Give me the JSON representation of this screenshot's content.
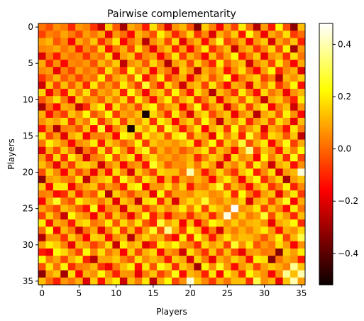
{
  "chart_data": {
    "type": "heatmap",
    "title": "Pairwise complementarity",
    "xlabel": "Players",
    "ylabel": "Players",
    "n": 36,
    "x_ticks": [
      0,
      5,
      10,
      15,
      20,
      25,
      30,
      35
    ],
    "y_ticks": [
      0,
      5,
      10,
      15,
      20,
      25,
      30,
      35
    ],
    "colormap": "hot",
    "vmin": -0.52,
    "vmax": 0.48,
    "colorbar_ticks": [
      -0.4,
      -0.2,
      0.0,
      0.2,
      0.4
    ],
    "colorbar_tick_labels": [
      "−0.4",
      "−0.2",
      "0.0",
      "0.2",
      "0.4"
    ],
    "values": [
      [
        0.02,
        -0.04,
        0.06,
        0.03,
        -0.1,
        0.07,
        0.04,
        -0.08,
        -0.25,
        0.16,
        -0.02,
        -0.3,
        0.1,
        0.05,
        -0.12,
        0.18,
        0.02,
        -0.22,
        0.07,
        0.12,
        -0.03,
        -0.34,
        0.15,
        0.04,
        -0.18,
        0.09,
        -0.06,
        0.2,
        0.01,
        -0.28,
        0.08,
        -0.12,
        0.22,
        -0.04,
        -0.33,
        0.13
      ],
      [
        -0.06,
        0.04,
        0.01,
        0.09,
        0.03,
        -0.05,
        0.08,
        0.02,
        0.1,
        -0.2,
        0.07,
        0.01,
        -0.15,
        0.12,
        0.06,
        -0.04,
        0.21,
        0.09,
        -0.1,
        0.03,
        0.17,
        -0.08,
        0.05,
        -0.22,
        0.11,
        0.02,
        0.15,
        -0.13,
        0.24,
        0.06,
        -0.19,
        0.1,
        0.03,
        0.18,
        -0.07,
        0.01
      ],
      [
        0.08,
        0.12,
        -0.03,
        0.05,
        -0.18,
        0.1,
        0.03,
        0.14,
        -0.09,
        0.05,
        0.19,
        -0.16,
        0.02,
        0.09,
        -0.27,
        0.06,
        0.13,
        -0.05,
        0.17,
        -0.21,
        0.04,
        0.12,
        -0.14,
        0.08,
        0.26,
        -0.06,
        0.02,
        0.11,
        -0.18,
        0.07,
        0.15,
        -0.23,
        0.09,
        0.01,
        0.14,
        -0.11
      ],
      [
        0.04,
        0.06,
        0.1,
        0.02,
        0.08,
        -0.12,
        0.05,
        -0.03,
        0.16,
        -0.14,
        0.02,
        0.11,
        -0.06,
        0.18,
        0.03,
        -0.2,
        0.06,
        0.14,
        -0.11,
        0.09,
        -0.16,
        0.05,
        0.2,
        -0.09,
        0.03,
        0.13,
        -0.25,
        0.06,
        0.12,
        -0.08,
        0.04,
        0.17,
        -0.05,
        0.21,
        -0.3,
        0.07
      ],
      [
        -0.22,
        0.03,
        -0.12,
        0.07,
        0.02,
        0.05,
        -0.08,
        0.06,
        0.01,
        0.17,
        -0.21,
        0.08,
        0.14,
        -0.1,
        0.05,
        0.09,
        -0.15,
        0.03,
        0.19,
        -0.07,
        0.11,
        0.02,
        -0.18,
        0.13,
        -0.04,
        0.08,
        0.22,
        -0.12,
        0.03,
        0.15,
        -0.2,
        0.06,
        0.11,
        -0.09,
        0.18,
        0.02
      ],
      [
        0.1,
        -0.1,
        0.06,
        -0.15,
        0.05,
        0.03,
        0.07,
        -0.04,
        0.12,
        0.04,
        0.15,
        -0.26,
        0.06,
        0.11,
        -0.03,
        0.17,
        0.05,
        -0.28,
        0.08,
        0.13,
        -0.05,
        0.16,
        0.03,
        -0.11,
        0.2,
        -0.02,
        0.09,
        0.14,
        -0.24,
        0.05,
        0.12,
        -0.06,
        0.19,
        0.03,
        -0.17,
        0.1
      ],
      [
        0.05,
        0.08,
        -0.2,
        0.04,
        -0.06,
        0.09,
        0.02,
        0.06,
        -0.07,
        0.18,
        0.03,
        -0.09,
        0.22,
        0.04,
        0.13,
        -0.17,
        0.09,
        0.02,
        -0.21,
        0.15,
        0.06,
        -0.26,
        0.1,
        0.04,
        0.12,
        -0.13,
        0.05,
        0.18,
        0.01,
        -0.16,
        0.08,
        0.23,
        -0.1,
        0.05,
        0.11,
        -0.22
      ],
      [
        -0.08,
        0.02,
        0.12,
        -0.02,
        0.06,
        -0.06,
        0.05,
        0.01,
        0.21,
        -0.05,
        0.09,
        0.14,
        -0.02,
        0.25,
        -0.13,
        0.04,
        0.2,
        -0.09,
        0.03,
        0.11,
        -0.19,
        0.07,
        0.14,
        -0.03,
        0.09,
        0.24,
        -0.18,
        0.02,
        0.1,
        0.16,
        -0.06,
        0.04,
        -0.27,
        0.12,
        0.06,
        0.15
      ],
      [
        -0.24,
        0.14,
        -0.06,
        0.13,
        -0.02,
        0.11,
        -0.1,
        0.19,
        0.0,
        0.08,
        -0.03,
        0.2,
        0.06,
        -0.07,
        0.27,
        0.03,
        -0.12,
        0.17,
        0.05,
        -0.24,
        0.09,
        0.13,
        -0.06,
        0.19,
        0.02,
        -0.15,
        0.11,
        0.06,
        -0.21,
        0.14,
        0.03,
        0.18,
        -0.08,
        0.05,
        0.22,
        -0.13
      ],
      [
        0.16,
        -0.19,
        0.04,
        -0.13,
        0.16,
        0.03,
        0.18,
        -0.04,
        0.09,
        0.05,
        0.14,
        -0.11,
        0.24,
        0.07,
        -0.18,
        0.1,
        0.15,
        -0.06,
        0.22,
        0.04,
        -0.13,
        0.18,
        0.07,
        -0.28,
        0.13,
        0.05,
        -0.09,
        0.2,
        0.04,
        -0.14,
        0.17,
        0.02,
        0.09,
        -0.19,
        0.06,
        0.12
      ],
      [
        -0.03,
        0.07,
        0.18,
        0.03,
        -0.2,
        0.15,
        0.04,
        0.08,
        -0.02,
        0.13,
        0.04,
        0.17,
        -0.08,
        0.2,
        0.05,
        -0.14,
        0.09,
        0.21,
        -0.04,
        0.11,
        0.18,
        -0.1,
        0.03,
        0.15,
        -0.2,
        0.08,
        0.14,
        -0.03,
        0.19,
        0.06,
        -0.25,
        0.1,
        0.15,
        0.02,
        -0.11,
        0.2
      ],
      [
        -0.29,
        0.01,
        -0.15,
        0.1,
        0.08,
        -0.25,
        -0.09,
        0.13,
        0.21,
        -0.12,
        0.18,
        0.03,
        0.1,
        -0.05,
        0.16,
        0.22,
        -0.02,
        0.08,
        0.13,
        -0.17,
        0.05,
        0.24,
        -0.11,
        0.06,
        0.14,
        -0.22,
        0.03,
        0.17,
        -0.07,
        0.12,
        0.2,
        -0.16,
        0.04,
        0.13,
        -0.24,
        0.07
      ],
      [
        0.11,
        -0.14,
        0.03,
        -0.07,
        0.14,
        0.06,
        0.22,
        -0.03,
        0.06,
        0.23,
        -0.07,
        0.09,
        0.05,
        0.13,
        -0.5,
        0.17,
        0.07,
        -0.1,
        0.2,
        0.04,
        -0.22,
        0.11,
        0.18,
        -0.05,
        0.08,
        0.14,
        -0.19,
        0.05,
        0.12,
        -0.27,
        0.09,
        0.15,
        -0.03,
        0.21,
        0.06,
        -0.16
      ],
      [
        0.06,
        0.13,
        0.09,
        0.18,
        -0.09,
        0.11,
        0.03,
        0.24,
        -0.08,
        0.07,
        0.19,
        -0.06,
        0.14,
        0.06,
        0.18,
        -0.09,
        0.21,
        0.13,
        -0.15,
        0.09,
        0.16,
        -0.04,
        0.23,
        0.08,
        -0.26,
        0.12,
        0.05,
        0.19,
        -0.1,
        0.07,
        0.14,
        -0.05,
        0.18,
        0.09,
        -0.2,
        0.13
      ],
      [
        -0.13,
        0.07,
        -0.28,
        0.03,
        0.05,
        -0.04,
        0.14,
        -0.14,
        0.27,
        -0.18,
        0.05,
        0.15,
        -0.49,
        0.18,
        0.08,
        0.2,
        -0.07,
        0.25,
        0.11,
        -0.12,
        0.06,
        0.19,
        -0.15,
        0.1,
        0.17,
        -0.08,
        0.23,
        -0.02,
        0.08,
        0.16,
        -0.21,
        0.11,
        0.05,
        -0.13,
        0.19,
        0.03
      ],
      [
        0.18,
        -0.05,
        0.07,
        -0.21,
        0.1,
        0.16,
        -0.17,
        0.04,
        0.03,
        0.09,
        -0.15,
        0.22,
        0.17,
        -0.09,
        0.2,
        0.1,
        0.15,
        -0.04,
        0.19,
        0.25,
        -0.06,
        0.13,
        0.08,
        -0.2,
        0.21,
        0.04,
        0.16,
        -0.11,
        0.26,
        0.06,
        -0.09,
        0.17,
        0.12,
        -0.03,
        0.14,
        -0.26
      ],
      [
        0.02,
        0.21,
        0.13,
        0.05,
        -0.15,
        0.05,
        0.09,
        0.2,
        -0.12,
        0.15,
        0.08,
        -0.02,
        0.06,
        0.22,
        -0.07,
        0.14,
        0.08,
        0.1,
        0.06,
        0.12,
        0.19,
        -0.13,
        0.07,
        0.22,
        -0.1,
        0.15,
        0.06,
        0.28,
        -0.04,
        0.11,
        0.2,
        -0.15,
        0.07,
        0.24,
        -0.06,
        0.1
      ],
      [
        -0.21,
        0.1,
        -0.04,
        0.15,
        0.03,
        -0.27,
        0.02,
        -0.08,
        0.18,
        -0.06,
        0.21,
        0.07,
        -0.11,
        0.14,
        0.25,
        -0.03,
        0.11,
        0.02,
        0.08,
        -0.02,
        0.05,
        0.12,
        0.19,
        -0.07,
        0.13,
        0.06,
        -0.14,
        0.09,
        0.36,
        -0.05,
        0.14,
        0.08,
        -0.12,
        0.16,
        0.04,
        0.22
      ],
      [
        0.08,
        -0.11,
        0.17,
        -0.1,
        0.2,
        0.09,
        -0.22,
        0.03,
        0.06,
        0.22,
        -0.04,
        0.12,
        0.19,
        -0.14,
        0.1,
        0.18,
        0.06,
        0.09,
        0.03,
        0.07,
        0.12,
        -0.1,
        0.04,
        0.16,
        0.09,
        -0.2,
        0.18,
        0.05,
        0.1,
        -0.16,
        0.22,
        0.03,
        0.15,
        -0.09,
        0.24,
        -0.05
      ],
      [
        0.13,
        0.03,
        -0.2,
        0.09,
        -0.07,
        0.14,
        0.16,
        0.11,
        -0.24,
        0.04,
        0.11,
        -0.18,
        0.04,
        0.08,
        -0.13,
        0.26,
        0.12,
        -0.02,
        0.06,
        0.05,
        0.14,
        0.02,
        0.17,
        0.08,
        -0.22,
        0.11,
        0.04,
        0.16,
        -0.07,
        0.2,
        0.07,
        -0.24,
        0.1,
        0.15,
        -0.14,
        0.06
      ],
      [
        -0.04,
        0.16,
        0.05,
        -0.17,
        0.11,
        -0.05,
        0.06,
        -0.19,
        0.09,
        -0.13,
        0.18,
        0.05,
        -0.23,
        0.15,
        0.05,
        -0.07,
        0.17,
        0.13,
        0.13,
        0.02,
        0.4,
        0.09,
        -0.12,
        0.05,
        0.17,
        0.03,
        -0.09,
        0.13,
        0.21,
        -0.11,
        0.05,
        0.18,
        -0.22,
        0.08,
        0.12,
        0.44
      ],
      [
        -0.33,
        0.08,
        0.11,
        0.05,
        0.02,
        0.18,
        -0.26,
        0.07,
        0.13,
        0.18,
        -0.1,
        0.24,
        0.11,
        -0.05,
        0.19,
        0.12,
        -0.14,
        0.11,
        -0.1,
        0.09,
        0.04,
        0.12,
        0.06,
        -0.16,
        0.1,
        0.2,
        0.07,
        -0.18,
        0.12,
        0.24,
        -0.09,
        0.06,
        0.16,
        -0.3,
        0.08,
        0.14
      ],
      [
        0.14,
        -0.16,
        0.19,
        0.2,
        -0.18,
        0.03,
        0.1,
        0.14,
        -0.06,
        0.07,
        0.03,
        -0.12,
        0.18,
        0.23,
        -0.15,
        0.07,
        0.07,
        0.18,
        0.04,
        0.16,
        -0.12,
        0.06,
        0.03,
        0.14,
        0.26,
        -0.06,
        0.12,
        0.04,
        -0.15,
        0.09,
        0.17,
        -0.08,
        0.03,
        0.21,
        -0.11,
        0.05
      ],
      [
        0.03,
        0.05,
        -0.14,
        -0.09,
        0.13,
        -0.11,
        0.04,
        -0.03,
        0.19,
        -0.28,
        0.15,
        0.06,
        -0.04,
        0.08,
        0.1,
        -0.2,
        0.22,
        -0.07,
        0.08,
        0.08,
        0.05,
        0.14,
        0.13,
        0.05,
        0.08,
        0.18,
        -0.1,
        0.22,
        0.03,
        -0.12,
        0.08,
        0.14,
        -0.2,
        0.06,
        0.19,
        -0.07
      ],
      [
        -0.17,
        0.11,
        0.26,
        0.03,
        -0.04,
        0.2,
        0.12,
        0.09,
        0.02,
        0.13,
        -0.21,
        0.14,
        0.08,
        -0.26,
        0.17,
        0.21,
        -0.1,
        0.13,
        -0.22,
        0.09,
        0.17,
        0.1,
        0.27,
        0.08,
        0.04,
        0.12,
        0.07,
        0.16,
        -0.23,
        0.09,
        0.14,
        -0.05,
        0.11,
        0.25,
        -0.16,
        0.1
      ],
      [
        0.09,
        0.02,
        -0.06,
        0.13,
        0.08,
        -0.02,
        -0.13,
        0.24,
        -0.15,
        0.05,
        0.08,
        -0.22,
        0.14,
        0.12,
        -0.08,
        0.04,
        0.15,
        0.06,
        0.11,
        0.2,
        0.03,
        0.2,
        -0.06,
        0.18,
        0.12,
        0.04,
        0.48,
        0.06,
        0.1,
        0.19,
        -0.06,
        0.13,
        0.04,
        -0.14,
        0.2,
        0.02
      ],
      [
        -0.06,
        0.15,
        0.02,
        -0.25,
        0.22,
        0.09,
        0.05,
        -0.18,
        0.11,
        -0.09,
        0.14,
        0.03,
        -0.19,
        0.05,
        0.23,
        -0.11,
        0.06,
        -0.14,
        0.04,
        0.07,
        -0.09,
        0.07,
        0.12,
        -0.1,
        0.07,
        0.45,
        0.05,
        0.15,
        0.03,
        0.08,
        0.27,
        -0.04,
        0.16,
        0.07,
        -0.1,
        0.13
      ],
      [
        0.2,
        -0.13,
        0.11,
        0.06,
        -0.12,
        0.14,
        0.18,
        0.02,
        0.06,
        0.2,
        -0.03,
        0.17,
        0.05,
        0.19,
        -0.02,
        -0.11,
        0.28,
        0.09,
        0.16,
        -0.18,
        0.13,
        -0.18,
        0.04,
        0.22,
        0.16,
        0.06,
        0.15,
        0.05,
        0.11,
        0.13,
        0.06,
        -0.2,
        0.09,
        0.14,
        0.22,
        -0.09
      ],
      [
        0.01,
        0.24,
        -0.18,
        0.12,
        0.03,
        -0.24,
        0.01,
        0.1,
        -0.21,
        0.04,
        0.19,
        -0.07,
        0.12,
        -0.1,
        0.08,
        0.26,
        -0.04,
        0.36,
        0.1,
        -0.07,
        0.21,
        0.12,
        -0.15,
        0.03,
        -0.23,
        0.1,
        0.03,
        0.11,
        0.04,
        0.12,
        0.2,
        0.07,
        -0.13,
        0.1,
        0.06,
        0.17
      ],
      [
        -0.28,
        0.06,
        0.07,
        -0.08,
        0.15,
        0.05,
        -0.16,
        0.16,
        0.14,
        -0.14,
        0.06,
        0.12,
        -0.27,
        0.07,
        0.16,
        0.06,
        0.11,
        -0.05,
        -0.16,
        0.2,
        -0.11,
        0.24,
        0.09,
        -0.12,
        0.09,
        0.19,
        0.08,
        0.13,
        0.12,
        0.07,
        -0.03,
        0.09,
        0.21,
        -0.05,
        0.12,
        0.3
      ],
      [
        0.08,
        0.2,
        0.15,
        0.04,
        -0.2,
        0.12,
        0.08,
        -0.06,
        0.03,
        0.17,
        -0.25,
        0.2,
        0.09,
        0.14,
        -0.21,
        -0.09,
        0.2,
        0.14,
        0.22,
        0.07,
        0.05,
        -0.09,
        0.17,
        0.08,
        0.14,
        -0.06,
        0.27,
        0.06,
        0.2,
        -0.03,
        0.07,
        0.02,
        0.18,
        0.08,
        -0.16,
        0.06
      ],
      [
        -0.12,
        -0.19,
        0.23,
        0.17,
        0.06,
        -0.06,
        0.23,
        0.04,
        0.18,
        0.02,
        0.1,
        -0.16,
        0.15,
        -0.05,
        0.11,
        0.17,
        -0.15,
        0.08,
        0.03,
        -0.24,
        0.18,
        0.06,
        -0.08,
        0.14,
        -0.05,
        0.13,
        -0.04,
        -0.2,
        0.07,
        0.09,
        0.02,
        0.04,
        -0.34,
        0.15,
        0.08,
        0.2
      ],
      [
        0.22,
        0.03,
        0.09,
        -0.05,
        0.11,
        0.19,
        -0.1,
        -0.27,
        0.09,
        0.09,
        0.15,
        0.04,
        -0.03,
        0.18,
        0.05,
        0.12,
        0.07,
        -0.12,
        0.15,
        0.1,
        -0.22,
        0.16,
        0.03,
        -0.2,
        0.11,
        0.04,
        0.16,
        0.09,
        -0.13,
        0.21,
        0.18,
        -0.34,
        0.02,
        0.1,
        0.06,
        -0.12
      ],
      [
        -0.04,
        0.18,
        0.01,
        0.21,
        -0.09,
        0.03,
        0.05,
        0.12,
        -0.08,
        -0.19,
        0.02,
        0.13,
        0.21,
        -0.13,
        0.19,
        -0.03,
        0.24,
        0.16,
        -0.09,
        0.15,
        0.08,
        -0.3,
        0.21,
        0.06,
        0.25,
        0.07,
        -0.14,
        0.07,
        0.14,
        -0.05,
        0.08,
        0.15,
        0.1,
        0.04,
        0.37,
        0.14
      ],
      [
        -0.33,
        0.07,
        0.14,
        -0.3,
        0.18,
        -0.17,
        0.11,
        0.06,
        0.22,
        0.06,
        -0.11,
        0.07,
        0.06,
        -0.2,
        0.03,
        0.14,
        -0.06,
        0.04,
        0.24,
        -0.14,
        0.12,
        0.08,
        -0.11,
        0.19,
        -0.16,
        0.2,
        0.1,
        -0.1,
        0.22,
        0.12,
        0.06,
        -0.16,
        0.06,
        0.37,
        0.13,
        0.4
      ],
      [
        0.13,
        0.01,
        -0.11,
        0.07,
        0.02,
        0.1,
        -0.22,
        0.15,
        -0.13,
        0.12,
        0.2,
        -0.24,
        0.13,
        0.03,
        0.19,
        -0.26,
        0.1,
        0.22,
        -0.05,
        0.06,
        0.44,
        0.14,
        0.05,
        -0.07,
        0.1,
        0.02,
        0.13,
        0.13,
        -0.09,
        0.3,
        0.06,
        0.12,
        -0.2,
        0.14,
        0.4,
        0.08
      ]
    ]
  }
}
